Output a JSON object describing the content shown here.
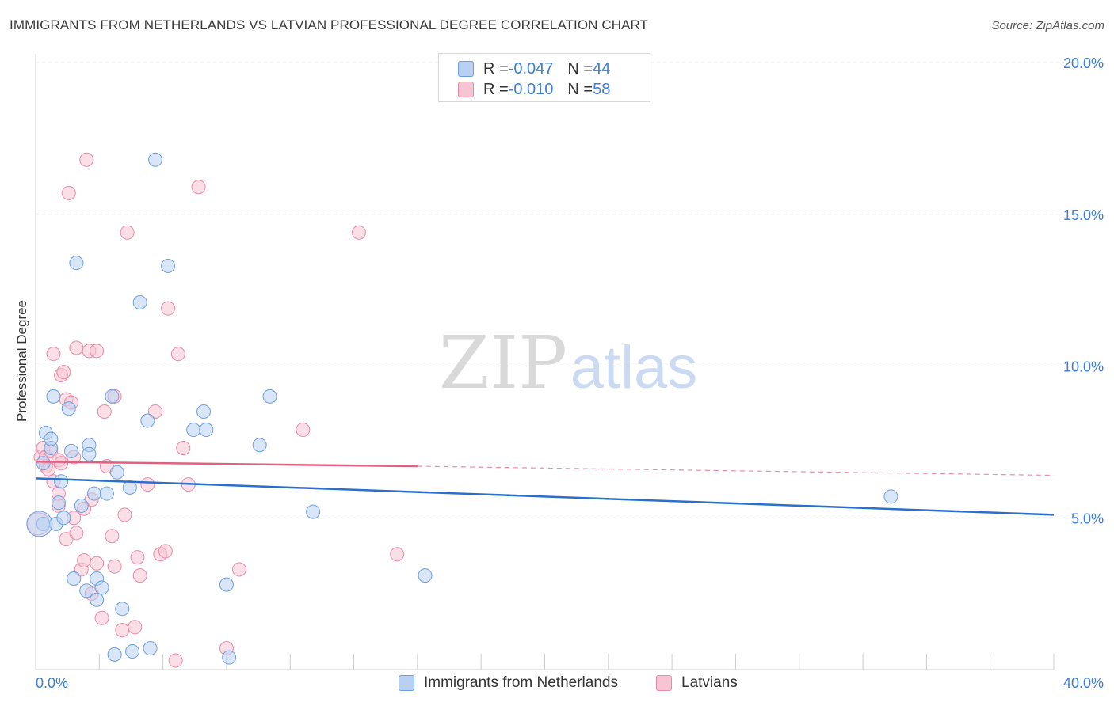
{
  "title": "IMMIGRANTS FROM NETHERLANDS VS LATVIAN PROFESSIONAL DEGREE CORRELATION CHART",
  "source": "Source: ZipAtlas.com",
  "watermark": {
    "zip": "ZIP",
    "atlas": "atlas"
  },
  "colors": {
    "blue_fill": "#b8d1f3",
    "blue_stroke": "#6f9ee0",
    "blue_line": "#2b6fcc",
    "pink_fill": "#f7c4d4",
    "pink_stroke": "#e98aab",
    "pink_line": "#e0607f",
    "tick_label": "#3b7dd8",
    "grid": "#e3e3e3"
  },
  "legend_top": [
    {
      "r_label": "R = ",
      "r_value": "-0.047",
      "n_label": "N = ",
      "n_value": "44"
    },
    {
      "r_label": "R = ",
      "r_value": "-0.010",
      "n_label": "N = ",
      "n_value": "58"
    }
  ],
  "chart_data": {
    "type": "scatter",
    "title": "IMMIGRANTS FROM NETHERLANDS VS LATVIAN PROFESSIONAL DEGREE CORRELATION CHART",
    "xlabel": "",
    "ylabel": "Professional Degree",
    "xlim": [
      0,
      40
    ],
    "ylim": [
      0,
      20
    ],
    "x_tick_labels": [
      "0.0%",
      "40.0%"
    ],
    "y_ticks": [
      5,
      10,
      15,
      20
    ],
    "y_tick_labels": [
      "5.0%",
      "10.0%",
      "15.0%",
      "20.0%"
    ],
    "grid": "horizontal dashed",
    "legend_position": "bottom",
    "series": [
      {
        "name": "Immigrants from Netherlands",
        "color": "blue",
        "r": -0.047,
        "n": 44,
        "trend": {
          "x": [
            0,
            40
          ],
          "y": [
            6.3,
            5.1
          ],
          "style": "solid"
        },
        "points": [
          [
            0.3,
            4.8
          ],
          [
            0.3,
            6.8
          ],
          [
            0.4,
            7.8
          ],
          [
            0.6,
            7.3
          ],
          [
            0.6,
            7.6
          ],
          [
            0.7,
            9.0
          ],
          [
            0.8,
            4.8
          ],
          [
            0.9,
            5.5
          ],
          [
            1.0,
            6.2
          ],
          [
            1.1,
            5.0
          ],
          [
            1.3,
            8.6
          ],
          [
            1.4,
            7.2
          ],
          [
            1.5,
            3.0
          ],
          [
            1.6,
            13.4
          ],
          [
            1.8,
            5.4
          ],
          [
            2.0,
            2.6
          ],
          [
            2.1,
            7.4
          ],
          [
            2.1,
            7.1
          ],
          [
            2.3,
            5.8
          ],
          [
            2.4,
            2.3
          ],
          [
            2.4,
            3.0
          ],
          [
            2.6,
            2.7
          ],
          [
            2.8,
            5.8
          ],
          [
            3.0,
            9.0
          ],
          [
            3.1,
            0.5
          ],
          [
            3.2,
            6.5
          ],
          [
            3.4,
            2.0
          ],
          [
            3.7,
            6.0
          ],
          [
            3.8,
            0.6
          ],
          [
            4.1,
            12.1
          ],
          [
            4.4,
            8.2
          ],
          [
            4.5,
            0.7
          ],
          [
            4.7,
            16.8
          ],
          [
            5.2,
            13.3
          ],
          [
            6.2,
            7.9
          ],
          [
            6.6,
            8.5
          ],
          [
            6.7,
            7.9
          ],
          [
            7.5,
            2.8
          ],
          [
            7.6,
            0.4
          ],
          [
            8.8,
            7.4
          ],
          [
            9.2,
            9.0
          ],
          [
            10.9,
            5.2
          ],
          [
            15.3,
            3.1
          ],
          [
            33.6,
            5.7
          ]
        ]
      },
      {
        "name": "Latvians",
        "color": "pink",
        "r": -0.01,
        "n": 58,
        "trend": {
          "x": [
            0,
            15
          ],
          "y": [
            6.85,
            6.7
          ],
          "style": "solid",
          "dashed_extension_to": [
            40,
            6.4
          ]
        },
        "points": [
          [
            0.2,
            7.0
          ],
          [
            0.3,
            7.3
          ],
          [
            0.4,
            6.7
          ],
          [
            0.4,
            7.0
          ],
          [
            0.5,
            6.6
          ],
          [
            0.6,
            7.2
          ],
          [
            0.7,
            6.2
          ],
          [
            0.7,
            10.4
          ],
          [
            0.9,
            5.4
          ],
          [
            0.9,
            6.9
          ],
          [
            0.9,
            5.8
          ],
          [
            1.0,
            9.7
          ],
          [
            1.1,
            9.8
          ],
          [
            1.2,
            8.9
          ],
          [
            1.2,
            4.3
          ],
          [
            1.3,
            15.7
          ],
          [
            1.4,
            8.8
          ],
          [
            1.5,
            7.0
          ],
          [
            1.6,
            4.5
          ],
          [
            1.6,
            10.6
          ],
          [
            1.8,
            3.3
          ],
          [
            1.9,
            3.6
          ],
          [
            1.9,
            5.3
          ],
          [
            2.0,
            16.8
          ],
          [
            2.1,
            10.5
          ],
          [
            2.2,
            5.6
          ],
          [
            2.2,
            2.5
          ],
          [
            2.4,
            10.5
          ],
          [
            2.4,
            3.5
          ],
          [
            2.6,
            1.7
          ],
          [
            2.7,
            8.5
          ],
          [
            2.8,
            6.7
          ],
          [
            3.0,
            4.4
          ],
          [
            3.1,
            3.4
          ],
          [
            3.1,
            9.0
          ],
          [
            3.4,
            1.3
          ],
          [
            3.5,
            5.1
          ],
          [
            3.6,
            14.4
          ],
          [
            3.9,
            1.4
          ],
          [
            4.0,
            3.7
          ],
          [
            4.1,
            3.1
          ],
          [
            4.4,
            6.1
          ],
          [
            4.7,
            8.5
          ],
          [
            4.9,
            3.8
          ],
          [
            5.1,
            3.9
          ],
          [
            5.2,
            11.9
          ],
          [
            5.5,
            0.3
          ],
          [
            5.6,
            10.4
          ],
          [
            5.8,
            7.3
          ],
          [
            6.0,
            6.1
          ],
          [
            6.4,
            15.9
          ],
          [
            7.5,
            0.7
          ],
          [
            8.0,
            3.3
          ],
          [
            10.5,
            7.9
          ],
          [
            12.7,
            14.4
          ],
          [
            14.2,
            3.8
          ],
          [
            1.0,
            6.8
          ],
          [
            1.5,
            5.0
          ]
        ]
      }
    ]
  }
}
